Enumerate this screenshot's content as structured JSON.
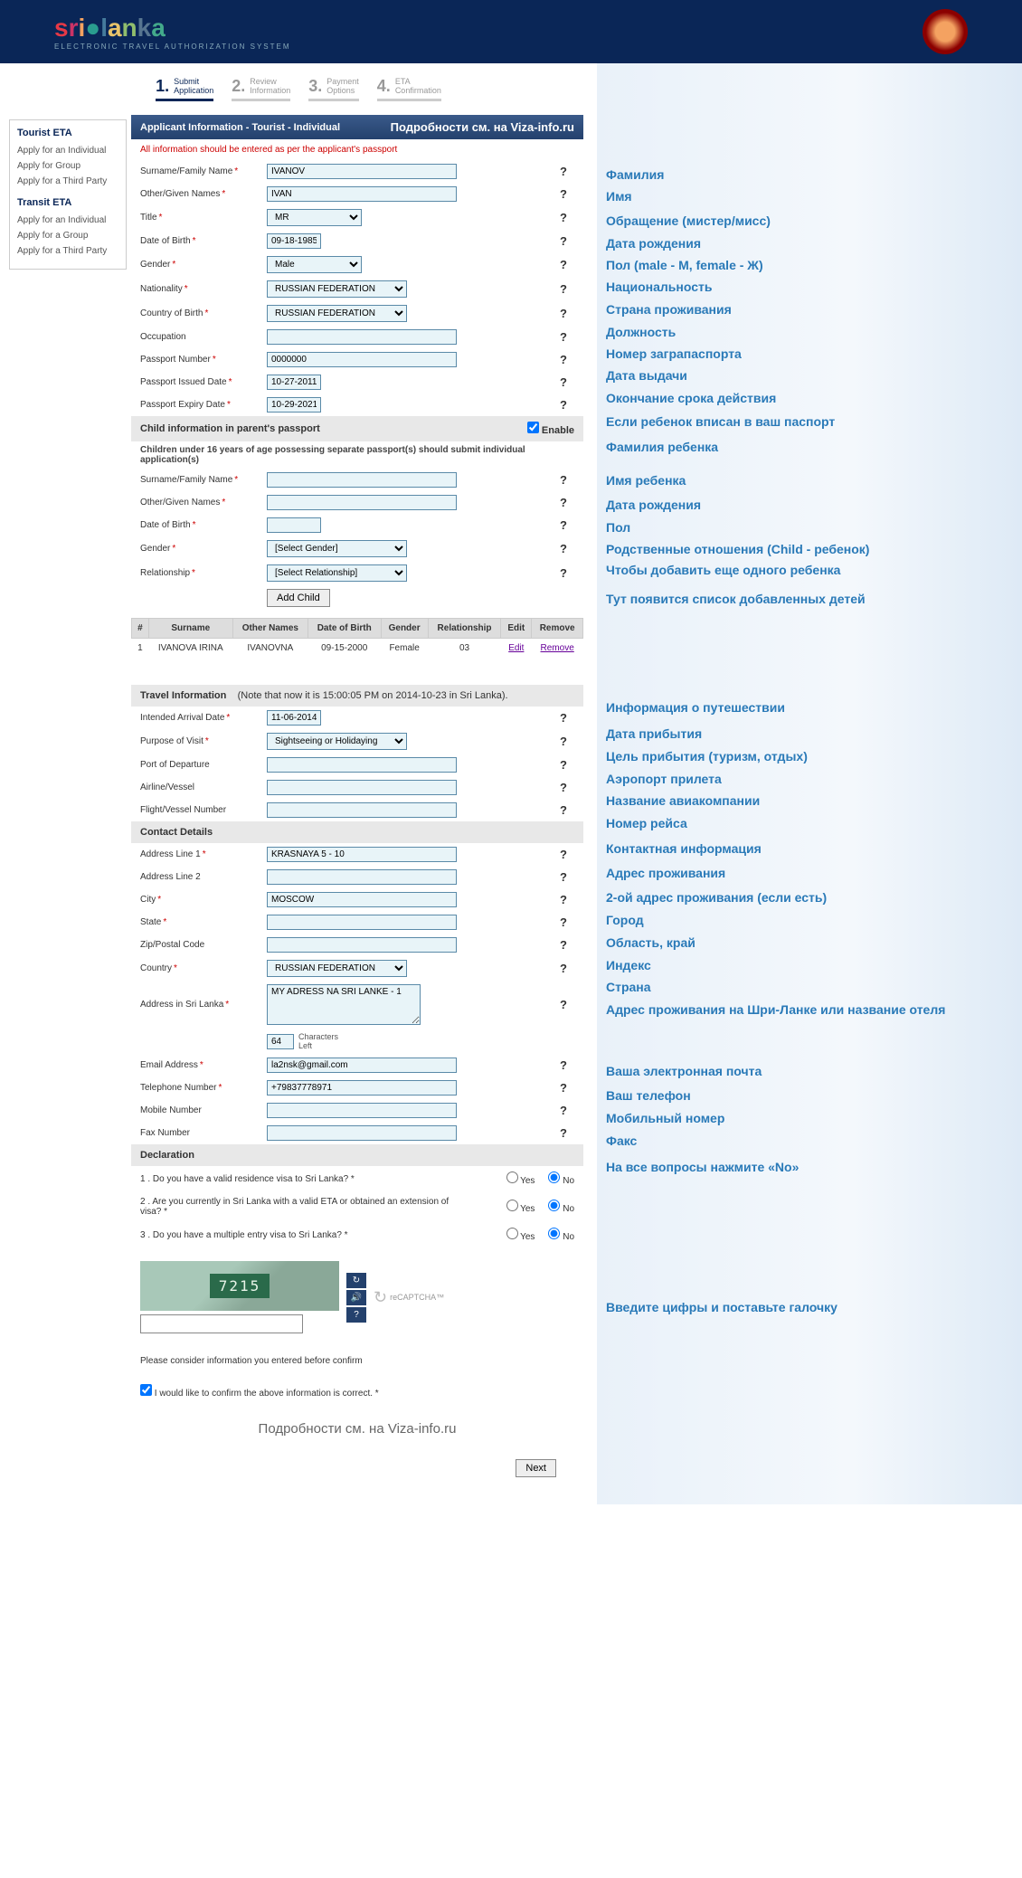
{
  "header": {
    "logo_text": "srilanka",
    "logo_sub": "ELECTRONIC TRAVEL AUTHORIZATION SYSTEM"
  },
  "steps": [
    {
      "num": "1.",
      "l1": "Submit",
      "l2": "Application",
      "active": true
    },
    {
      "num": "2.",
      "l1": "Review",
      "l2": "Information",
      "active": false
    },
    {
      "num": "3.",
      "l1": "Payment",
      "l2": "Options",
      "active": false
    },
    {
      "num": "4.",
      "l1": "ETA",
      "l2": "Confirmation",
      "active": false
    }
  ],
  "sidebar": {
    "g1": {
      "title": "Tourist ETA",
      "links": [
        "Apply for an Individual",
        "Apply for Group",
        "Apply for a Third Party"
      ]
    },
    "g2": {
      "title": "Transit ETA",
      "links": [
        "Apply for an Individual",
        "Apply for a Group",
        "Apply for a Third Party"
      ]
    }
  },
  "titlebar": {
    "left": "Applicant Information - Tourist - Individual",
    "right": "Подробности см. на Viza-info.ru"
  },
  "warn": "All information should be entered as per the applicant's passport",
  "fields": {
    "surname": {
      "label": "Surname/Family Name",
      "val": "IVANOV"
    },
    "given": {
      "label": "Other/Given Names",
      "val": "IVAN"
    },
    "title": {
      "label": "Title",
      "val": "MR"
    },
    "dob": {
      "label": "Date of Birth",
      "val": "09-18-1985"
    },
    "gender": {
      "label": "Gender",
      "val": "Male"
    },
    "nat": {
      "label": "Nationality",
      "val": "RUSSIAN FEDERATION"
    },
    "cob": {
      "label": "Country of Birth",
      "val": "RUSSIAN FEDERATION"
    },
    "occ": {
      "label": "Occupation",
      "val": ""
    },
    "ppn": {
      "label": "Passport Number",
      "val": "0000000"
    },
    "pid": {
      "label": "Passport Issued Date",
      "val": "10-27-2011"
    },
    "ped": {
      "label": "Passport Expiry Date",
      "val": "10-29-2021"
    }
  },
  "child_hdr": "Child information in parent's passport",
  "child_enable": "Enable",
  "child_note": "Children under 16 years of age possessing separate passport(s) should submit individual application(s)",
  "child_fields": {
    "surname": {
      "label": "Surname/Family Name",
      "val": ""
    },
    "given": {
      "label": "Other/Given Names",
      "val": ""
    },
    "dob": {
      "label": "Date of Birth",
      "val": ""
    },
    "gender": {
      "label": "Gender",
      "val": "[Select Gender]"
    },
    "rel": {
      "label": "Relationship",
      "val": "[Select Relationship]"
    }
  },
  "add_child": "Add Child",
  "child_tbl": {
    "hdrs": [
      "#",
      "Surname",
      "Other Names",
      "Date of Birth",
      "Gender",
      "Relationship",
      "Edit",
      "Remove"
    ],
    "row": [
      "1",
      "IVANOVA IRINA",
      "IVANOVNA",
      "09-15-2000",
      "Female",
      "03",
      "Edit",
      "Remove"
    ]
  },
  "travel_hdr": "Travel Information",
  "travel_note": "(Note that now it is 15:00:05 PM on 2014-10-23 in Sri Lanka).",
  "travel": {
    "arrival": {
      "label": "Intended Arrival Date",
      "val": "11-06-2014"
    },
    "purpose": {
      "label": "Purpose of Visit",
      "val": "Sightseeing or Holidaying"
    },
    "port": {
      "label": "Port of Departure",
      "val": ""
    },
    "airline": {
      "label": "Airline/Vessel",
      "val": ""
    },
    "flight": {
      "label": "Flight/Vessel Number",
      "val": ""
    }
  },
  "contact_hdr": "Contact Details",
  "contact": {
    "addr1": {
      "label": "Address Line 1",
      "val": "KRASNAYA 5 - 10"
    },
    "addr2": {
      "label": "Address Line 2",
      "val": ""
    },
    "city": {
      "label": "City",
      "val": "MOSCOW"
    },
    "state": {
      "label": "State",
      "val": ""
    },
    "zip": {
      "label": "Zip/Postal Code",
      "val": ""
    },
    "country": {
      "label": "Country",
      "val": "RUSSIAN FEDERATION"
    },
    "sladdr": {
      "label": "Address in Sri Lanka",
      "val": "MY ADRESS NA SRI LANKE - 1"
    },
    "charcount": "64",
    "charlabel": "Characters",
    "charleft": "Left",
    "email": {
      "label": "Email Address",
      "val": "la2nsk@gmail.com"
    },
    "tel": {
      "label": "Telephone Number",
      "val": "+79837778971"
    },
    "mob": {
      "label": "Mobile Number",
      "val": ""
    },
    "fax": {
      "label": "Fax Number",
      "val": ""
    }
  },
  "decl_hdr": "Declaration",
  "decl": [
    "1 . Do you have a valid residence visa to Sri Lanka? *",
    "2 . Are you currently in Sri Lanka with a valid ETA or obtained an extension of visa? *",
    "3 . Do you have a multiple entry visa to Sri Lanka? *"
  ],
  "yes": "Yes",
  "no": "No",
  "captcha_code": "7215",
  "recaptcha": "reCAPTCHA™",
  "confirm_note": "Please consider information you entered before confirm",
  "confirm_chk": "I would like to confirm the above information is correct. *",
  "footer": "Подробности см. на Viza-info.ru",
  "next": "Next",
  "ann": {
    "surname": "Фамилия",
    "given": "Имя",
    "title": "Обращение (мистер/мисс)",
    "dob": "Дата рождения",
    "gender": "Пол (male - М, female - Ж)",
    "nat": "Национальность",
    "cob": "Страна проживания",
    "occ": "Должность",
    "ppn": "Номер заграпаспорта",
    "pid": "Дата выдачи",
    "ped": "Окончание срока действия",
    "childhdr": "Если ребенок вписан в ваш паспорт",
    "csurname": "Фамилия ребенка",
    "cgiven": "Имя ребенка",
    "cdob": "Дата рождения",
    "cgender": "Пол",
    "crel": "Родственные отношения (Child - ребенок)",
    "addchild": "Чтобы добавить еще одного ребенка",
    "childlist": "Тут появится список добавленных детей",
    "travel": "Информация о путешествии",
    "arrival": "Дата прибытия",
    "purpose": "Цель прибытия (туризм, отдых)",
    "port": "Аэропорт прилета",
    "airline": "Название авиакомпании",
    "flight": "Номер рейса",
    "contact": "Контактная информация",
    "addr1": "Адрес проживания",
    "addr2": "2-ой адрес проживания (если есть)",
    "city": "Город",
    "state": "Область, край",
    "zip": "Индекс",
    "country": "Страна",
    "sladdr": "Адрес проживания на Шри-Ланке или название отеля",
    "email": "Ваша электронная почта",
    "tel": "Ваш телефон",
    "mob": "Мобильный номер",
    "fax": "Факс",
    "decl": "На все вопросы нажмите «No»",
    "captcha": "Введите цифры и поставьте галочку"
  },
  "ann_heights": {
    "surname": 24,
    "given": 27,
    "title": 25,
    "dob": 24,
    "gender": 24,
    "nat": 25,
    "cob": 25,
    "occ": 24,
    "ppn": 24,
    "pid": 25,
    "ped": 26,
    "childhdr": 28,
    "csurname": 37,
    "cgiven": 27,
    "cdob": 25,
    "cgender": 24,
    "crel": 23,
    "addchild": 32,
    "childlist": 120,
    "travel": 29,
    "arrival": 25,
    "purpose": 25,
    "port": 24,
    "airline": 25,
    "flight": 28,
    "contact": 27,
    "addr1": 27,
    "addr2": 25,
    "city": 25,
    "state": 25,
    "zip": 24,
    "country": 25,
    "sladdr": 68,
    "email": 27,
    "tel": 25,
    "mob": 25,
    "fax": 29,
    "decl": 155,
    "captcha": 30
  }
}
